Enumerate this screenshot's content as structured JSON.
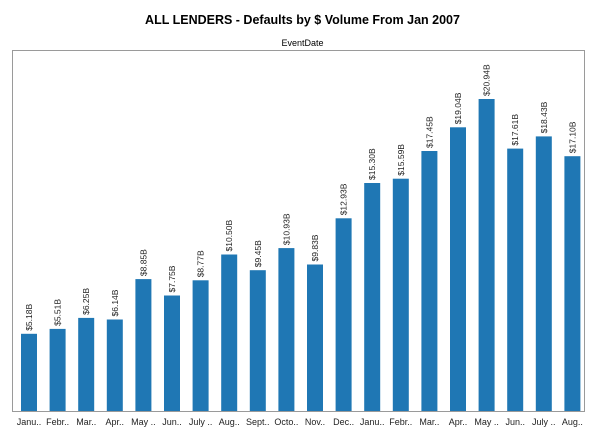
{
  "chart_data": {
    "type": "bar",
    "title": "ALL LENDERS - Defaults by $ Volume From Jan 2007",
    "subtitle": "EventDate",
    "categories": [
      "Janu..",
      "Febr..",
      "Mar..",
      "Apr..",
      "May ..",
      "Jun..",
      "July ..",
      "Aug..",
      "Sept..",
      "Octo..",
      "Nov..",
      "Dec..",
      "Janu..",
      "Febr..",
      "Mar..",
      "Apr..",
      "May ..",
      "Jun..",
      "July ..",
      "Aug.."
    ],
    "values": [
      5.18,
      5.51,
      6.25,
      6.14,
      8.85,
      7.75,
      8.77,
      10.5,
      9.45,
      10.93,
      9.83,
      12.93,
      15.3,
      15.59,
      17.45,
      19.04,
      20.94,
      17.61,
      18.43,
      17.1
    ],
    "data_labels": [
      "$5.18B",
      "$5.51B",
      "$6.25B",
      "$6.14B",
      "$8.85B",
      "$7.75B",
      "$8.77B",
      "$10.50B",
      "$9.45B",
      "$10.93B",
      "$9.83B",
      "$12.93B",
      "$15.30B",
      "$15.59B",
      "$17.45B",
      "$19.04B",
      "$20.94B",
      "$17.61B",
      "$18.43B",
      "$17.10B"
    ],
    "ylim": [
      0,
      23
    ],
    "bar_color": "#1f77b4",
    "grid": false,
    "xlabel": "",
    "ylabel": ""
  }
}
